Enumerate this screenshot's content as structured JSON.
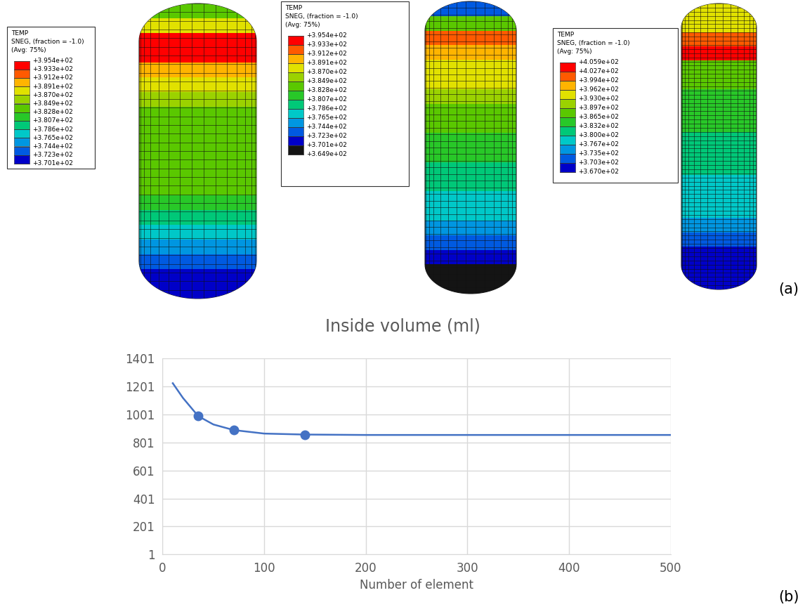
{
  "panel_labels": [
    "(a)",
    "(b)"
  ],
  "contour_plots": [
    {
      "legend_title": [
        "TEMP",
        "SNEG, (fraction = -1.0)",
        "(Avg: 75%)"
      ],
      "levels": [
        {
          "value": 395.4,
          "label": "+3.954e+02"
        },
        {
          "value": 393.3,
          "label": "+3.933e+02"
        },
        {
          "value": 391.2,
          "label": "+3.912e+02"
        },
        {
          "value": 389.1,
          "label": "+3.891e+02"
        },
        {
          "value": 387.0,
          "label": "+3.870e+02"
        },
        {
          "value": 384.9,
          "label": "+3.849e+02"
        },
        {
          "value": 382.8,
          "label": "+3.828e+02"
        },
        {
          "value": 380.7,
          "label": "+3.807e+02"
        },
        {
          "value": 378.6,
          "label": "+3.786e+02"
        },
        {
          "value": 376.5,
          "label": "+3.765e+02"
        },
        {
          "value": 374.4,
          "label": "+3.744e+02"
        },
        {
          "value": 372.3,
          "label": "+3.723e+02"
        },
        {
          "value": 370.1,
          "label": "+3.701e+02"
        }
      ],
      "colors": [
        "#ff0000",
        "#ff5a00",
        "#ffb400",
        "#e1e100",
        "#9bd200",
        "#5ac800",
        "#28c828",
        "#00c878",
        "#00c8c8",
        "#0096e1",
        "#005ae1",
        "#0000c8"
      ],
      "temperature_profile": [
        384,
        389,
        395,
        394,
        391,
        388,
        385,
        384,
        384,
        384,
        384,
        383,
        383,
        381,
        379,
        378,
        376,
        374,
        372,
        371
      ]
    },
    {
      "legend_title": [
        "TEMP",
        "SNEG, (fraction = -1.0)",
        "(Avg: 75%)"
      ],
      "levels": [
        {
          "value": 395.4,
          "label": "+3.954e+02"
        },
        {
          "value": 393.3,
          "label": "+3.933e+02"
        },
        {
          "value": 391.2,
          "label": "+3.912e+02"
        },
        {
          "value": 389.1,
          "label": "+3.891e+02"
        },
        {
          "value": 387.0,
          "label": "+3.870e+02"
        },
        {
          "value": 384.9,
          "label": "+3.849e+02"
        },
        {
          "value": 382.8,
          "label": "+3.828e+02"
        },
        {
          "value": 380.7,
          "label": "+3.807e+02"
        },
        {
          "value": 378.6,
          "label": "+3.786e+02"
        },
        {
          "value": 376.5,
          "label": "+3.765e+02"
        },
        {
          "value": 374.4,
          "label": "+3.744e+02"
        },
        {
          "value": 372.3,
          "label": "+3.723e+02"
        },
        {
          "value": 370.1,
          "label": "+3.701e+02"
        },
        {
          "value": 364.9,
          "label": "+3.649e+02"
        }
      ],
      "colors": [
        "#ff0000",
        "#ff5a00",
        "#ffb400",
        "#e1e100",
        "#9bd200",
        "#5ac800",
        "#28c828",
        "#00c878",
        "#00c8c8",
        "#0096e1",
        "#005ae1",
        "#0000c8",
        "#141414"
      ],
      "temperature_profile": [
        373,
        384,
        392,
        391,
        389,
        387,
        385,
        384,
        383,
        382,
        381,
        380,
        379,
        378,
        377,
        375,
        373,
        371,
        368,
        366
      ]
    },
    {
      "legend_title": [
        "TEMP",
        "SNEG, (fraction = -1.0)",
        "(Avg: 75%)"
      ],
      "levels": [
        {
          "value": 405.9,
          "label": "+4.059e+02"
        },
        {
          "value": 402.7,
          "label": "+4.027e+02"
        },
        {
          "value": 399.4,
          "label": "+3.994e+02"
        },
        {
          "value": 396.2,
          "label": "+3.962e+02"
        },
        {
          "value": 393.0,
          "label": "+3.930e+02"
        },
        {
          "value": 389.7,
          "label": "+3.897e+02"
        },
        {
          "value": 386.5,
          "label": "+3.865e+02"
        },
        {
          "value": 383.2,
          "label": "+3.832e+02"
        },
        {
          "value": 380.0,
          "label": "+3.800e+02"
        },
        {
          "value": 376.7,
          "label": "+3.767e+02"
        },
        {
          "value": 373.5,
          "label": "+3.735e+02"
        },
        {
          "value": 370.3,
          "label": "+3.703e+02"
        },
        {
          "value": 367.0,
          "label": "+3.670e+02"
        }
      ],
      "colors": [
        "#ff0000",
        "#ff5a00",
        "#ffb400",
        "#e1e100",
        "#9bd200",
        "#5ac800",
        "#28c828",
        "#00c878",
        "#00c8c8",
        "#0096e1",
        "#005ae1",
        "#0000c8"
      ],
      "temperature_profile": [
        393,
        396,
        400,
        405,
        388,
        387,
        386,
        385,
        384,
        382,
        381,
        380,
        379,
        378,
        377,
        375,
        372,
        370,
        368,
        367
      ]
    }
  ],
  "chart_data": {
    "type": "line",
    "title": "Inside volume (ml)",
    "x_label": "Number of element",
    "xlim": [
      0,
      500
    ],
    "xticks": [
      0,
      100,
      200,
      300,
      400,
      500
    ],
    "ylim": [
      1,
      1401
    ],
    "yticks": [
      1,
      201,
      401,
      601,
      801,
      1001,
      1201,
      1401
    ],
    "grid": true,
    "series": [
      {
        "type": "line",
        "color": "#4472c4",
        "line_style": "solid",
        "marker": "none",
        "x": [
          10,
          20,
          35,
          50,
          70,
          100,
          140,
          200,
          300,
          400,
          500
        ],
        "values": [
          1225,
          1120,
          990,
          930,
          890,
          865,
          858,
          855,
          855,
          855,
          855
        ]
      },
      {
        "type": "scatter",
        "color": "#4472c4",
        "marker": "circle",
        "x": [
          35,
          70,
          140
        ],
        "values": [
          990,
          890,
          858
        ]
      }
    ]
  }
}
